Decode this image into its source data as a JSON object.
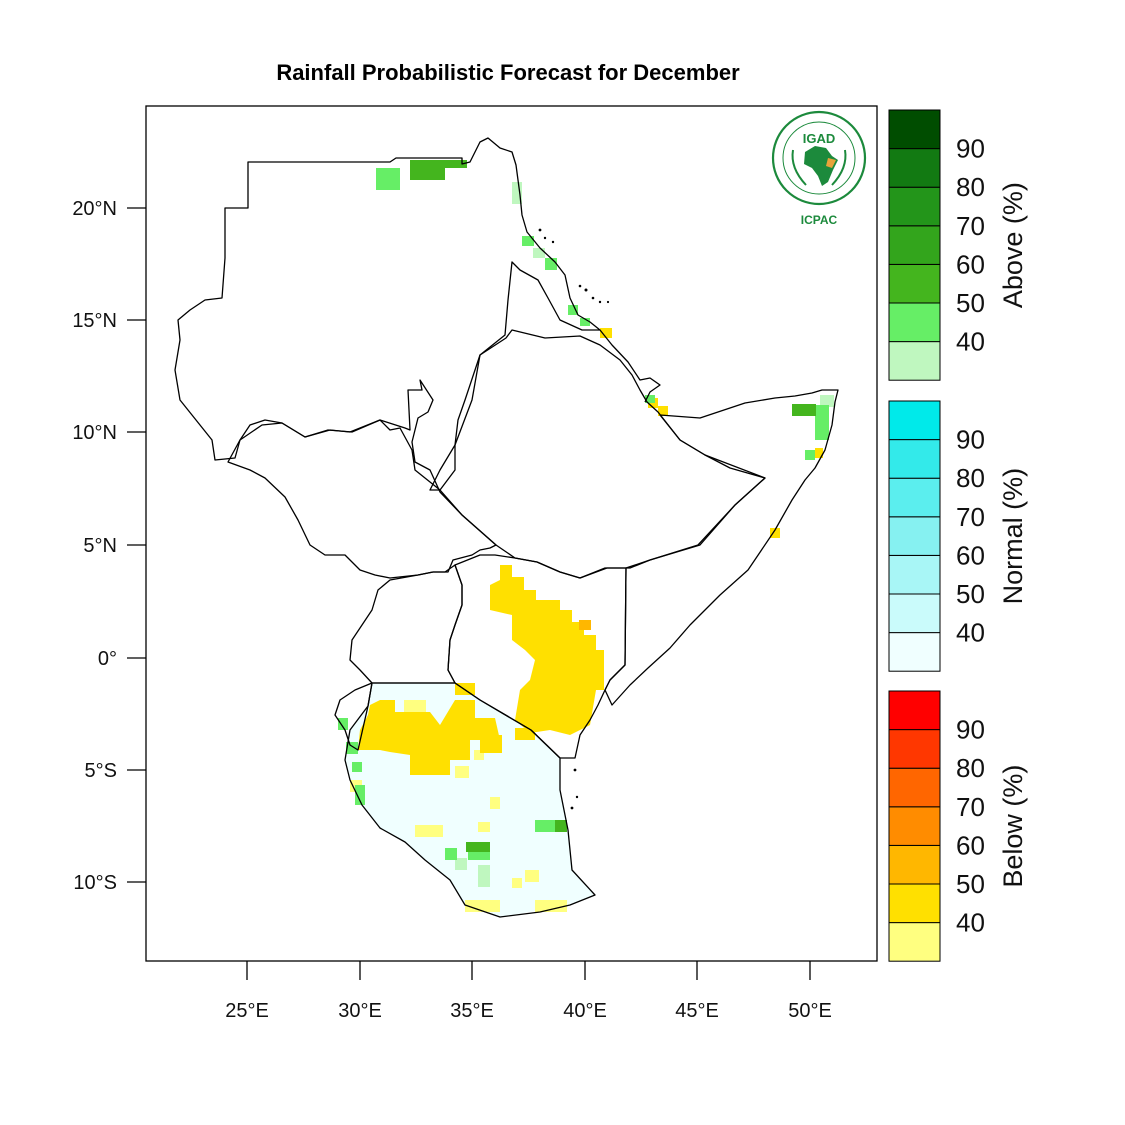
{
  "title": "Rainfall Probabilistic Forecast for December",
  "logo": {
    "name": "IGAD",
    "sub": "ICPAC"
  },
  "lat_ticks": [
    "20°N",
    "15°N",
    "10°N",
    "5°N",
    "0°",
    "5°S",
    "10°S"
  ],
  "lon_ticks": [
    "25°E",
    "30°E",
    "35°E",
    "40°E",
    "45°E",
    "50°E"
  ],
  "colorbars": [
    {
      "title": "Above (%)",
      "levels": [
        "40",
        "50",
        "60",
        "70",
        "80",
        "90"
      ],
      "colors": [
        "#bff7bf",
        "#66ee66",
        "#44b51e",
        "#33a51c",
        "#23951a",
        "#127a12",
        "#004d00"
      ]
    },
    {
      "title": "Normal (%)",
      "levels": [
        "40",
        "50",
        "60",
        "70",
        "80",
        "90"
      ],
      "colors": [
        "#f0ffff",
        "#cafbfb",
        "#a8f6f6",
        "#86f1f1",
        "#5beeee",
        "#33eaea",
        "#00eaea"
      ]
    },
    {
      "title": "Below (%)",
      "levels": [
        "40",
        "50",
        "60",
        "70",
        "80",
        "90"
      ],
      "colors": [
        "#ffff80",
        "#ffe000",
        "#ffb700",
        "#ff8c00",
        "#ff6600",
        "#ff3700",
        "#ff0000"
      ]
    }
  ],
  "colors": {
    "frame": "#000000",
    "border": "#000000",
    "logo_green": "#1c8a3c",
    "logo_orange": "#e8a33a"
  }
}
